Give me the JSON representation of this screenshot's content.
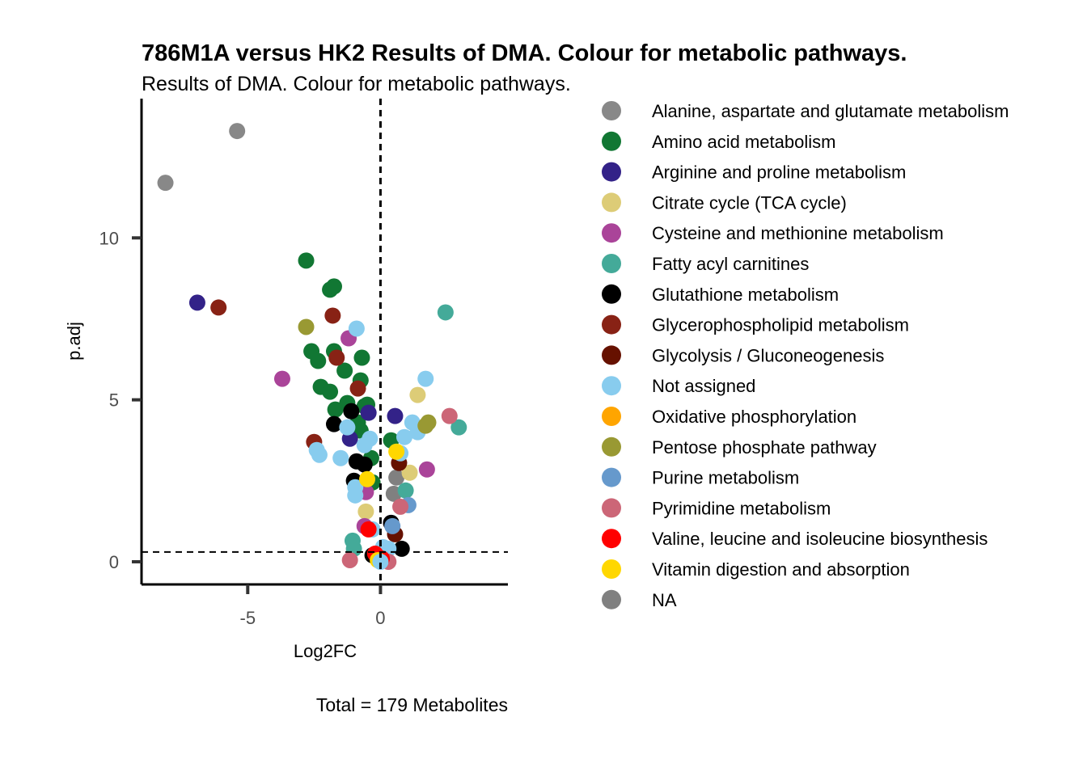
{
  "chart_data": {
    "type": "scatter",
    "title": "786M1A versus HK2 Results of DMA. Colour for metabolic pathways.",
    "subtitle": "Results of DMA. Colour for metabolic pathways.",
    "xlabel": "Log2FC",
    "ylabel": "p.adj",
    "caption": "Total = 179 Metabolites",
    "xlim": [
      -9,
      4.8
    ],
    "ylim": [
      -0.7,
      14.3
    ],
    "x_ticks": [
      -5,
      0
    ],
    "y_ticks": [
      0,
      5,
      10
    ],
    "x_tick_labels": [
      "-5",
      "0"
    ],
    "y_tick_labels": [
      "0",
      "5",
      "10"
    ],
    "reference_lines": {
      "vertical_x": 0,
      "horizontal_y": 0.3
    },
    "grid": false,
    "legend_position": "right",
    "legend": [
      {
        "name": "Alanine, aspartate and glutamate metabolism",
        "color": "#888888"
      },
      {
        "name": "Amino acid metabolism",
        "color": "#117733"
      },
      {
        "name": "Arginine and proline metabolism",
        "color": "#332288"
      },
      {
        "name": "Citrate cycle (TCA cycle)",
        "color": "#DDCC77"
      },
      {
        "name": "Cysteine and methionine metabolism",
        "color": "#AA4499"
      },
      {
        "name": "Fatty acyl carnitines",
        "color": "#44AA99"
      },
      {
        "name": "Glutathione metabolism",
        "color": "#000000"
      },
      {
        "name": "Glycerophospholipid metabolism",
        "color": "#882215"
      },
      {
        "name": "Glycolysis / Gluconeogenesis",
        "color": "#661100"
      },
      {
        "name": "Not assigned",
        "color": "#88CCEE"
      },
      {
        "name": "Oxidative phosphorylation",
        "color": "#FFA500"
      },
      {
        "name": "Pentose phosphate pathway",
        "color": "#999933"
      },
      {
        "name": "Purine metabolism",
        "color": "#6699CC"
      },
      {
        "name": "Pyrimidine metabolism",
        "color": "#CC6677"
      },
      {
        "name": "Valine, leucine and isoleucine biosynthesis",
        "color": "#FF0000"
      },
      {
        "name": "Vitamin digestion and absorption",
        "color": "#FFD700"
      },
      {
        "name": "NA",
        "color": "#808080"
      }
    ],
    "points": [
      {
        "x": -5.4,
        "y": 13.3,
        "g": 0
      },
      {
        "x": -8.1,
        "y": 11.7,
        "g": 0
      },
      {
        "x": 0.6,
        "y": 2.6,
        "g": 16
      },
      {
        "x": 0.5,
        "y": 2.1,
        "g": 16
      },
      {
        "x": -2.8,
        "y": 9.3,
        "g": 1
      },
      {
        "x": -1.9,
        "y": 8.4,
        "g": 1
      },
      {
        "x": -1.75,
        "y": 8.5,
        "g": 1
      },
      {
        "x": -2.6,
        "y": 6.5,
        "g": 1
      },
      {
        "x": -1.75,
        "y": 6.5,
        "g": 1
      },
      {
        "x": -2.35,
        "y": 6.2,
        "g": 1
      },
      {
        "x": -0.7,
        "y": 6.3,
        "g": 1
      },
      {
        "x": -1.35,
        "y": 5.9,
        "g": 1
      },
      {
        "x": -0.75,
        "y": 5.6,
        "g": 1
      },
      {
        "x": -2.25,
        "y": 5.4,
        "g": 1
      },
      {
        "x": -1.9,
        "y": 5.25,
        "g": 1
      },
      {
        "x": -1.25,
        "y": 4.9,
        "g": 1
      },
      {
        "x": -1.7,
        "y": 4.7,
        "g": 1
      },
      {
        "x": -0.6,
        "y": 4.8,
        "g": 1
      },
      {
        "x": -0.5,
        "y": 4.85,
        "g": 1
      },
      {
        "x": -0.85,
        "y": 4.3,
        "g": 1
      },
      {
        "x": -0.75,
        "y": 4.05,
        "g": 1
      },
      {
        "x": 0.4,
        "y": 3.75,
        "g": 1
      },
      {
        "x": -0.35,
        "y": 3.2,
        "g": 1
      },
      {
        "x": -0.3,
        "y": 2.45,
        "g": 1
      },
      {
        "x": -6.9,
        "y": 8.0,
        "g": 2
      },
      {
        "x": 0.55,
        "y": 4.5,
        "g": 2
      },
      {
        "x": -1.15,
        "y": 3.8,
        "g": 2
      },
      {
        "x": -0.45,
        "y": 4.6,
        "g": 2
      },
      {
        "x": 0.4,
        "y": 1.2,
        "g": 2
      },
      {
        "x": 1.4,
        "y": 5.15,
        "g": 3
      },
      {
        "x": 1.1,
        "y": 2.75,
        "g": 3
      },
      {
        "x": -0.55,
        "y": 1.55,
        "g": 3
      },
      {
        "x": -3.7,
        "y": 5.65,
        "g": 4
      },
      {
        "x": -1.2,
        "y": 6.9,
        "g": 4
      },
      {
        "x": 1.75,
        "y": 2.85,
        "g": 4
      },
      {
        "x": -0.55,
        "y": 2.15,
        "g": 4
      },
      {
        "x": -0.6,
        "y": 1.1,
        "g": 4
      },
      {
        "x": 2.45,
        "y": 7.7,
        "g": 5
      },
      {
        "x": 2.95,
        "y": 4.15,
        "g": 5
      },
      {
        "x": 0.95,
        "y": 2.2,
        "g": 5
      },
      {
        "x": -1.05,
        "y": 0.65,
        "g": 5
      },
      {
        "x": -1.0,
        "y": 0.4,
        "g": 5
      },
      {
        "x": -1.75,
        "y": 4.25,
        "g": 6
      },
      {
        "x": -0.9,
        "y": 3.1,
        "g": 6
      },
      {
        "x": -1.0,
        "y": 2.5,
        "g": 6
      },
      {
        "x": -1.1,
        "y": 4.65,
        "g": 6
      },
      {
        "x": 0.8,
        "y": 0.4,
        "g": 6
      },
      {
        "x": -0.3,
        "y": 0.2,
        "g": 6
      },
      {
        "x": 0.4,
        "y": 1.2,
        "g": 6
      },
      {
        "x": -0.6,
        "y": 3.0,
        "g": 6
      },
      {
        "x": -6.1,
        "y": 7.85,
        "g": 7
      },
      {
        "x": -1.8,
        "y": 7.6,
        "g": 7
      },
      {
        "x": -1.65,
        "y": 6.3,
        "g": 7
      },
      {
        "x": -0.85,
        "y": 5.35,
        "g": 7
      },
      {
        "x": -2.5,
        "y": 3.7,
        "g": 7
      },
      {
        "x": 0.55,
        "y": 0.85,
        "g": 8
      },
      {
        "x": 0.7,
        "y": 3.05,
        "g": 8
      },
      {
        "x": -0.9,
        "y": 7.2,
        "g": 9
      },
      {
        "x": 1.7,
        "y": 5.65,
        "g": 9
      },
      {
        "x": 1.2,
        "y": 4.3,
        "g": 9
      },
      {
        "x": 1.4,
        "y": 4.0,
        "g": 9
      },
      {
        "x": 0.9,
        "y": 3.85,
        "g": 9
      },
      {
        "x": -2.4,
        "y": 3.45,
        "g": 9
      },
      {
        "x": -2.3,
        "y": 3.3,
        "g": 9
      },
      {
        "x": -1.5,
        "y": 3.2,
        "g": 9
      },
      {
        "x": -1.25,
        "y": 4.15,
        "g": 9
      },
      {
        "x": -0.6,
        "y": 3.6,
        "g": 9
      },
      {
        "x": -0.4,
        "y": 3.8,
        "g": 9
      },
      {
        "x": 0.75,
        "y": 3.35,
        "g": 9
      },
      {
        "x": -0.95,
        "y": 2.3,
        "g": 9
      },
      {
        "x": -0.95,
        "y": 2.05,
        "g": 9
      },
      {
        "x": -0.3,
        "y": 1.0,
        "g": 9
      },
      {
        "x": 0.1,
        "y": 0.45,
        "g": 9
      },
      {
        "x": 0.3,
        "y": 0.4,
        "g": 9
      },
      {
        "x": -0.1,
        "y": 0.15,
        "g": 10
      },
      {
        "x": 1.8,
        "y": 4.3,
        "g": 11
      },
      {
        "x": 1.7,
        "y": 4.2,
        "g": 11
      },
      {
        "x": -2.8,
        "y": 7.25,
        "g": 11
      },
      {
        "x": 1.05,
        "y": 1.75,
        "g": 12
      },
      {
        "x": 0.45,
        "y": 1.1,
        "g": 12
      },
      {
        "x": 2.6,
        "y": 4.5,
        "g": 13
      },
      {
        "x": 0.75,
        "y": 1.7,
        "g": 13
      },
      {
        "x": -1.15,
        "y": 0.05,
        "g": 13
      },
      {
        "x": 0.3,
        "y": 0.0,
        "g": 13
      },
      {
        "x": -0.2,
        "y": 0.25,
        "g": 14
      },
      {
        "x": 0.05,
        "y": 0.1,
        "g": 14
      },
      {
        "x": -0.45,
        "y": 1.0,
        "g": 14
      },
      {
        "x": 0.6,
        "y": 3.4,
        "g": 15
      },
      {
        "x": -0.5,
        "y": 2.55,
        "g": 15
      },
      {
        "x": -0.1,
        "y": 0.05,
        "g": 15
      },
      {
        "x": 0.0,
        "y": 0.0,
        "g": 9
      }
    ]
  }
}
